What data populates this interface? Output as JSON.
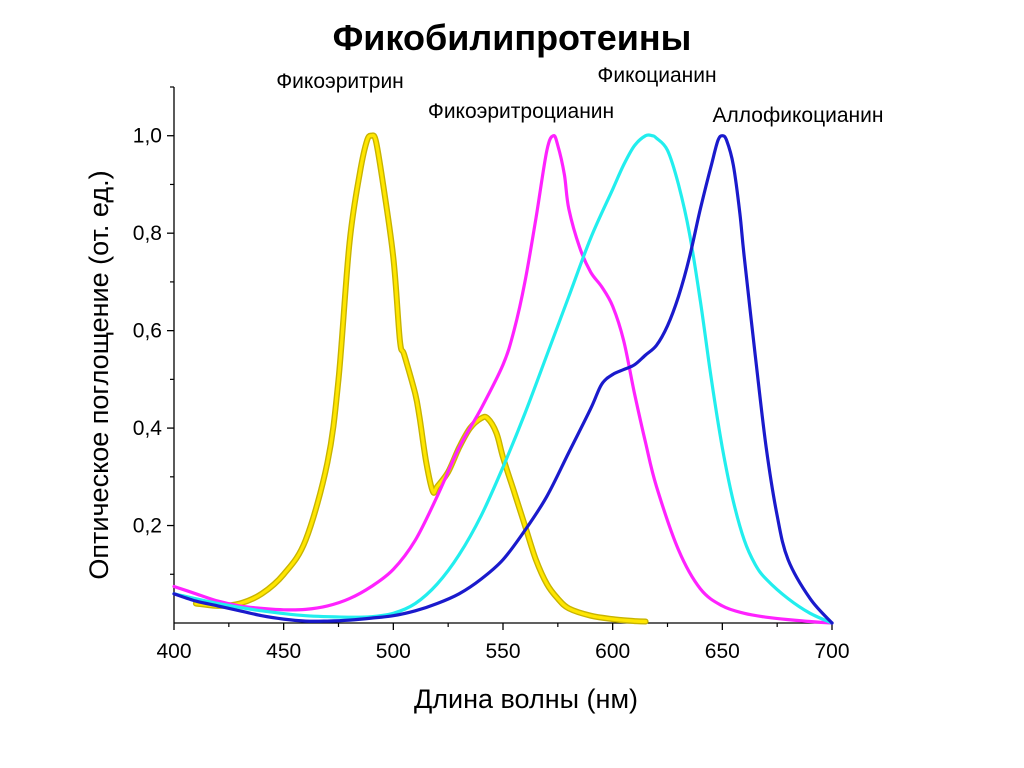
{
  "chart_data": {
    "type": "line",
    "title": "Фикобилипротеины",
    "xlabel": "Длина волны (нм)",
    "ylabel": "Оптическое поглощение (от. ед.)",
    "xlim": [
      400,
      700
    ],
    "ylim": [
      0,
      1.1
    ],
    "x_ticks": [
      400,
      450,
      500,
      550,
      600,
      650,
      700
    ],
    "x_tick_labels": [
      "400",
      "450",
      "500",
      "550",
      "600",
      "650",
      "700"
    ],
    "y_ticks": [
      0.2,
      0.4,
      0.6,
      0.8,
      1.0
    ],
    "y_tick_labels": [
      "0,2",
      "0,4",
      "0,6",
      "0,8",
      "1,0"
    ],
    "grid": false,
    "series": [
      {
        "name": "Фикоэритрин",
        "color": "#ffe600",
        "outline_color": "#c8b400",
        "x": [
          410,
          420,
          430,
          440,
          450,
          460,
          470,
          475,
          480,
          485,
          488,
          490,
          492,
          495,
          500,
          503,
          505,
          510,
          512,
          515,
          518,
          520,
          525,
          530,
          535,
          540,
          543,
          547,
          550,
          555,
          560,
          565,
          570,
          575,
          580,
          590,
          600,
          610,
          615
        ],
        "y": [
          0.04,
          0.035,
          0.04,
          0.06,
          0.1,
          0.17,
          0.33,
          0.5,
          0.78,
          0.93,
          0.99,
          1.0,
          0.99,
          0.91,
          0.75,
          0.58,
          0.55,
          0.47,
          0.42,
          0.33,
          0.27,
          0.28,
          0.31,
          0.36,
          0.4,
          0.42,
          0.42,
          0.39,
          0.34,
          0.27,
          0.2,
          0.13,
          0.08,
          0.05,
          0.03,
          0.015,
          0.008,
          0.004,
          0.003
        ]
      },
      {
        "name": "Фикоэритроцианин",
        "color": "#ff22ff",
        "x": [
          400,
          410,
          420,
          430,
          440,
          450,
          460,
          470,
          480,
          490,
          500,
          510,
          520,
          530,
          540,
          550,
          555,
          560,
          565,
          570,
          573,
          575,
          578,
          580,
          585,
          590,
          595,
          600,
          605,
          610,
          615,
          620,
          630,
          640,
          650,
          660,
          670,
          680,
          690,
          700
        ],
        "y": [
          0.075,
          0.06,
          0.045,
          0.035,
          0.03,
          0.027,
          0.028,
          0.035,
          0.05,
          0.075,
          0.11,
          0.17,
          0.26,
          0.36,
          0.44,
          0.53,
          0.6,
          0.7,
          0.83,
          0.97,
          1.0,
          0.98,
          0.92,
          0.85,
          0.77,
          0.72,
          0.69,
          0.65,
          0.58,
          0.47,
          0.37,
          0.28,
          0.15,
          0.07,
          0.035,
          0.02,
          0.012,
          0.007,
          0.003,
          0.0
        ]
      },
      {
        "name": "Фикоцианин",
        "color": "#22eeee",
        "x": [
          400,
          420,
          440,
          460,
          480,
          490,
          500,
          510,
          520,
          530,
          540,
          550,
          560,
          570,
          580,
          590,
          600,
          605,
          610,
          615,
          618,
          620,
          625,
          630,
          635,
          640,
          645,
          650,
          655,
          660,
          665,
          670,
          680,
          690,
          700
        ],
        "y": [
          0.06,
          0.04,
          0.025,
          0.015,
          0.012,
          0.013,
          0.02,
          0.04,
          0.08,
          0.14,
          0.22,
          0.32,
          0.43,
          0.55,
          0.67,
          0.79,
          0.89,
          0.94,
          0.98,
          1.0,
          1.0,
          0.995,
          0.97,
          0.9,
          0.8,
          0.66,
          0.5,
          0.36,
          0.25,
          0.17,
          0.12,
          0.09,
          0.05,
          0.02,
          0.0
        ]
      },
      {
        "name": "Аллофикоцианин",
        "color": "#1a1acc",
        "x": [
          400,
          410,
          420,
          430,
          440,
          450,
          460,
          470,
          480,
          490,
          500,
          510,
          520,
          530,
          540,
          550,
          560,
          570,
          580,
          590,
          595,
          600,
          605,
          610,
          615,
          620,
          625,
          630,
          635,
          640,
          645,
          648,
          650,
          652,
          655,
          658,
          660,
          665,
          670,
          675,
          680,
          690,
          700
        ],
        "y": [
          0.06,
          0.045,
          0.035,
          0.025,
          0.015,
          0.008,
          0.004,
          0.004,
          0.006,
          0.01,
          0.015,
          0.025,
          0.04,
          0.06,
          0.09,
          0.13,
          0.19,
          0.26,
          0.35,
          0.44,
          0.49,
          0.51,
          0.52,
          0.53,
          0.55,
          0.57,
          0.61,
          0.67,
          0.75,
          0.85,
          0.94,
          0.99,
          1.0,
          0.99,
          0.94,
          0.84,
          0.75,
          0.55,
          0.36,
          0.22,
          0.13,
          0.05,
          0.0
        ]
      }
    ]
  }
}
